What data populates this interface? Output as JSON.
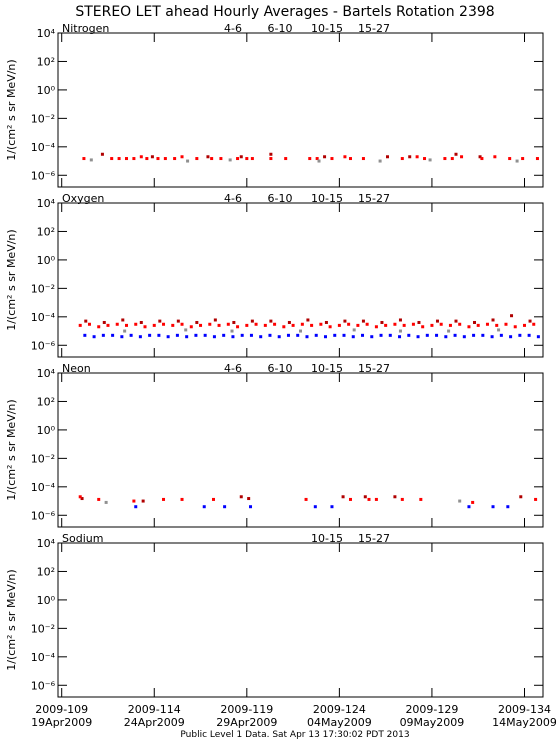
{
  "title": "STEREO LET ahead Hourly Averages - Bartels Rotation 2398",
  "footer": "Public Level 1 Data. Sat Apr 13 17:30:02 PDT 2013",
  "chart_data": [
    {
      "type": "scatter",
      "title": "Nitrogen",
      "ylabel": "1/(cm² s sr MeV/n)",
      "log_y": true,
      "xlim": [
        108.8,
        135
      ],
      "xticks": [
        109,
        114,
        119,
        124,
        129,
        134
      ],
      "ylim": [
        1.5e-07,
        10000
      ],
      "yticks": [
        {
          "value": 1e-06,
          "label": "10⁻⁶"
        },
        {
          "value": 0.0001,
          "label": "10⁻⁴"
        },
        {
          "value": 0.01,
          "label": "10⁻²"
        },
        {
          "value": 1,
          "label": "10⁰"
        },
        {
          "value": 100,
          "label": "10²"
        },
        {
          "value": 10000,
          "label": "10⁴"
        }
      ],
      "series": [
        {
          "name": "4-6",
          "color": "#b00000",
          "x": [
            111.2,
            113.9,
            116.9,
            118.7,
            120.3,
            123.2,
            126.6,
            127.8,
            130.3,
            131.6
          ],
          "values": [
            3e-05,
            2e-05,
            2e-05,
            2e-05,
            3e-05,
            2e-05,
            2e-05,
            2e-05,
            3e-05,
            2e-05
          ]
        },
        {
          "name": "6-10",
          "color": "#ff0000",
          "x": [
            110.2,
            111.7,
            112.1,
            112.5,
            112.9,
            113.3,
            113.6,
            114.2,
            114.6,
            115.1,
            115.5,
            116.3,
            117.1,
            117.6,
            118.5,
            119.0,
            119.3,
            120.3,
            121.1,
            122.4,
            122.8,
            123.6,
            124.3,
            124.6,
            125.3,
            127.4,
            128.2,
            128.6,
            129.7,
            130.1,
            130.6,
            131.7,
            132.4,
            133.2,
            133.9,
            134.7
          ],
          "values": [
            1.5e-05,
            1.5e-05,
            1.5e-05,
            1.5e-05,
            1.5e-05,
            2e-05,
            1.5e-05,
            1.5e-05,
            1.5e-05,
            1.5e-05,
            2e-05,
            1.5e-05,
            1.5e-05,
            1.5e-05,
            1.5e-05,
            1.5e-05,
            1.5e-05,
            1.5e-05,
            1.5e-05,
            1.5e-05,
            1.5e-05,
            1.5e-05,
            2e-05,
            1.5e-05,
            1.5e-05,
            1.5e-05,
            2e-05,
            1.5e-05,
            1.5e-05,
            1.5e-05,
            2e-05,
            1.5e-05,
            2e-05,
            1.5e-05,
            1.5e-05,
            1.5e-05
          ]
        },
        {
          "name": "10-15",
          "color": "#909090",
          "x": [
            110.6,
            115.8,
            118.1,
            122.9,
            126.2,
            128.9,
            133.6
          ],
          "values": [
            1.2e-05,
            1e-05,
            1.2e-05,
            1e-05,
            1e-05,
            1.2e-05,
            1e-05
          ]
        },
        {
          "name": "15-27",
          "color": "#0000ff",
          "x": [],
          "values": []
        }
      ]
    },
    {
      "type": "scatter",
      "title": "Oxygen",
      "ylabel": "1/(cm² s sr MeV/n)",
      "log_y": true,
      "xlim": [
        108.8,
        135
      ],
      "xticks": [
        109,
        114,
        119,
        124,
        129,
        134
      ],
      "ylim": [
        1.5e-07,
        10000
      ],
      "yticks": [
        {
          "value": 1e-06,
          "label": "10⁻⁶"
        },
        {
          "value": 0.0001,
          "label": "10⁻⁴"
        },
        {
          "value": 0.01,
          "label": "10⁻²"
        },
        {
          "value": 1,
          "label": "10⁰"
        },
        {
          "value": 100,
          "label": "10²"
        },
        {
          "value": 10000,
          "label": "10⁴"
        }
      ],
      "series": [
        {
          "name": "4-6",
          "color": "#b00000",
          "x": [
            110.3,
            111.3,
            112.3,
            113.3,
            114.3,
            115.3,
            116.3,
            117.3,
            118.3,
            119.3,
            120.3,
            121.3,
            122.3,
            123.3,
            124.3,
            125.3,
            126.3,
            127.3,
            128.3,
            129.3,
            130.3,
            131.3,
            132.3,
            133.3,
            134.3
          ],
          "values": [
            5e-05,
            4e-05,
            6e-05,
            4e-05,
            5e-05,
            5e-05,
            4e-05,
            6e-05,
            4e-05,
            5e-05,
            5e-05,
            4e-05,
            6e-05,
            4e-05,
            5e-05,
            5e-05,
            4e-05,
            6e-05,
            4e-05,
            5e-05,
            5e-05,
            4e-05,
            6e-05,
            0.00012,
            5e-05
          ]
        },
        {
          "name": "6-10",
          "color": "#ff0000",
          "x": [
            110.0,
            110.5,
            111.0,
            111.5,
            112.0,
            112.5,
            113.0,
            113.5,
            114.0,
            114.5,
            115.0,
            115.5,
            116.0,
            116.5,
            117.0,
            117.5,
            118.0,
            118.5,
            119.0,
            119.5,
            120.0,
            120.5,
            121.0,
            121.5,
            122.0,
            122.5,
            123.0,
            123.5,
            124.0,
            124.5,
            125.0,
            125.5,
            126.0,
            126.5,
            127.0,
            127.5,
            128.0,
            128.5,
            129.0,
            129.5,
            130.0,
            130.5,
            131.0,
            131.5,
            132.0,
            132.5,
            133.0,
            133.5,
            134.0,
            134.5
          ],
          "values": [
            2.5e-05,
            3e-05,
            2e-05,
            2.5e-05,
            3e-05,
            2.5e-05,
            3e-05,
            2e-05,
            2.5e-05,
            3e-05,
            2.5e-05,
            3e-05,
            2e-05,
            2.5e-05,
            3e-05,
            2.5e-05,
            3e-05,
            2e-05,
            2.5e-05,
            3e-05,
            2.5e-05,
            3e-05,
            2e-05,
            2.5e-05,
            3e-05,
            2.5e-05,
            3e-05,
            2e-05,
            2.5e-05,
            3e-05,
            2.5e-05,
            3e-05,
            2e-05,
            2.5e-05,
            3e-05,
            2.5e-05,
            3e-05,
            2e-05,
            2.5e-05,
            3e-05,
            2.5e-05,
            3e-05,
            2e-05,
            2.5e-05,
            3e-05,
            2.5e-05,
            3e-05,
            2e-05,
            2.5e-05,
            3e-05
          ]
        },
        {
          "name": "10-15",
          "color": "#909090",
          "x": [
            112.4,
            115.7,
            118.2,
            121.9,
            124.8,
            127.3,
            129.9,
            132.6
          ],
          "values": [
            1e-05,
            1.2e-05,
            1e-05,
            1e-05,
            1.2e-05,
            1e-05,
            1e-05,
            1.2e-05
          ]
        },
        {
          "name": "15-27",
          "color": "#0000ff",
          "x": [
            110.25,
            110.75,
            111.25,
            111.75,
            112.25,
            112.75,
            113.25,
            113.75,
            114.25,
            114.75,
            115.25,
            115.75,
            116.25,
            116.75,
            117.25,
            117.75,
            118.25,
            118.75,
            119.25,
            119.75,
            120.25,
            120.75,
            121.25,
            121.75,
            122.25,
            122.75,
            123.25,
            123.75,
            124.25,
            124.75,
            125.25,
            125.75,
            126.25,
            126.75,
            127.25,
            127.75,
            128.25,
            128.75,
            129.25,
            129.75,
            130.25,
            130.75,
            131.25,
            131.75,
            132.25,
            132.75,
            133.25,
            133.75,
            134.25,
            134.75
          ],
          "values": [
            5e-06,
            4e-06,
            5e-06,
            5e-06,
            4e-06,
            5e-06,
            4e-06,
            5e-06,
            5e-06,
            4e-06,
            5e-06,
            4e-06,
            5e-06,
            5e-06,
            4e-06,
            5e-06,
            4e-06,
            5e-06,
            5e-06,
            4e-06,
            5e-06,
            4e-06,
            5e-06,
            5e-06,
            4e-06,
            5e-06,
            4e-06,
            5e-06,
            5e-06,
            4e-06,
            5e-06,
            4e-06,
            5e-06,
            5e-06,
            4e-06,
            5e-06,
            4e-06,
            5e-06,
            5e-06,
            4e-06,
            5e-06,
            4e-06,
            5e-06,
            5e-06,
            4e-06,
            5e-06,
            4e-06,
            5e-06,
            5e-06,
            4e-06
          ]
        }
      ]
    },
    {
      "type": "scatter",
      "title": "Neon",
      "ylabel": "1/(cm² s sr MeV/n)",
      "log_y": true,
      "xlim": [
        108.8,
        135
      ],
      "xticks": [
        109,
        114,
        119,
        124,
        129,
        134
      ],
      "ylim": [
        1.5e-07,
        10000
      ],
      "yticks": [
        {
          "value": 1e-06,
          "label": "10⁻⁶"
        },
        {
          "value": 0.0001,
          "label": "10⁻⁴"
        },
        {
          "value": 0.01,
          "label": "10⁻²"
        },
        {
          "value": 1,
          "label": "10⁰"
        },
        {
          "value": 100,
          "label": "10²"
        },
        {
          "value": 10000,
          "label": "10⁴"
        }
      ],
      "series": [
        {
          "name": "4-6",
          "color": "#b00000",
          "x": [
            110.1,
            113.4,
            118.7,
            119.1,
            124.2,
            125.4,
            127.0,
            133.8
          ],
          "values": [
            1.5e-05,
            1e-05,
            2e-05,
            1.5e-05,
            2e-05,
            2e-05,
            2e-05,
            2e-05
          ]
        },
        {
          "name": "6-10",
          "color": "#ff0000",
          "x": [
            110.0,
            111.0,
            112.9,
            114.5,
            115.5,
            117.2,
            122.2,
            124.6,
            125.6,
            126.0,
            127.4,
            128.4,
            131.2,
            134.6
          ],
          "values": [
            2e-05,
            1.3e-05,
            1e-05,
            1.3e-05,
            1.3e-05,
            1.3e-05,
            1.3e-05,
            1.3e-05,
            1.3e-05,
            1.3e-05,
            1.3e-05,
            1.3e-05,
            8e-06,
            1.3e-05
          ]
        },
        {
          "name": "10-15",
          "color": "#909090",
          "x": [
            111.4,
            130.5
          ],
          "values": [
            8e-06,
            1e-05
          ]
        },
        {
          "name": "15-27",
          "color": "#0000ff",
          "x": [
            113.0,
            116.7,
            117.8,
            119.2,
            122.7,
            123.6,
            131.0,
            132.3,
            133.1
          ],
          "values": [
            4e-06,
            4e-06,
            4e-06,
            4e-06,
            4e-06,
            4e-06,
            4e-06,
            4e-06,
            4e-06
          ]
        }
      ]
    },
    {
      "type": "scatter",
      "title": "Sodium",
      "ylabel": "1/(cm² s sr MeV/n)",
      "log_y": true,
      "xlim": [
        108.8,
        135
      ],
      "xticks": [
        {
          "value": 109,
          "label": "2009-109",
          "sublabel": "19Apr2009"
        },
        {
          "value": 114,
          "label": "2009-114",
          "sublabel": "24Apr2009"
        },
        {
          "value": 119,
          "label": "2009-119",
          "sublabel": "29Apr2009"
        },
        {
          "value": 124,
          "label": "2009-124",
          "sublabel": "04May2009"
        },
        {
          "value": 129,
          "label": "2009-129",
          "sublabel": "09May2009"
        },
        {
          "value": 134,
          "label": "2009-134",
          "sublabel": "14May2009"
        }
      ],
      "ylim": [
        1.5e-07,
        10000
      ],
      "yticks": [
        {
          "value": 1e-06,
          "label": "10⁻⁶"
        },
        {
          "value": 0.0001,
          "label": "10⁻⁴"
        },
        {
          "value": 0.01,
          "label": "10⁻²"
        },
        {
          "value": 1,
          "label": "10⁰"
        },
        {
          "value": 100,
          "label": "10²"
        },
        {
          "value": 10000,
          "label": "10⁴"
        }
      ],
      "series": [
        {
          "name": "10-15",
          "color": "#909090",
          "x": [],
          "values": []
        },
        {
          "name": "15-27",
          "color": "#0000ff",
          "x": [],
          "values": []
        }
      ]
    }
  ]
}
